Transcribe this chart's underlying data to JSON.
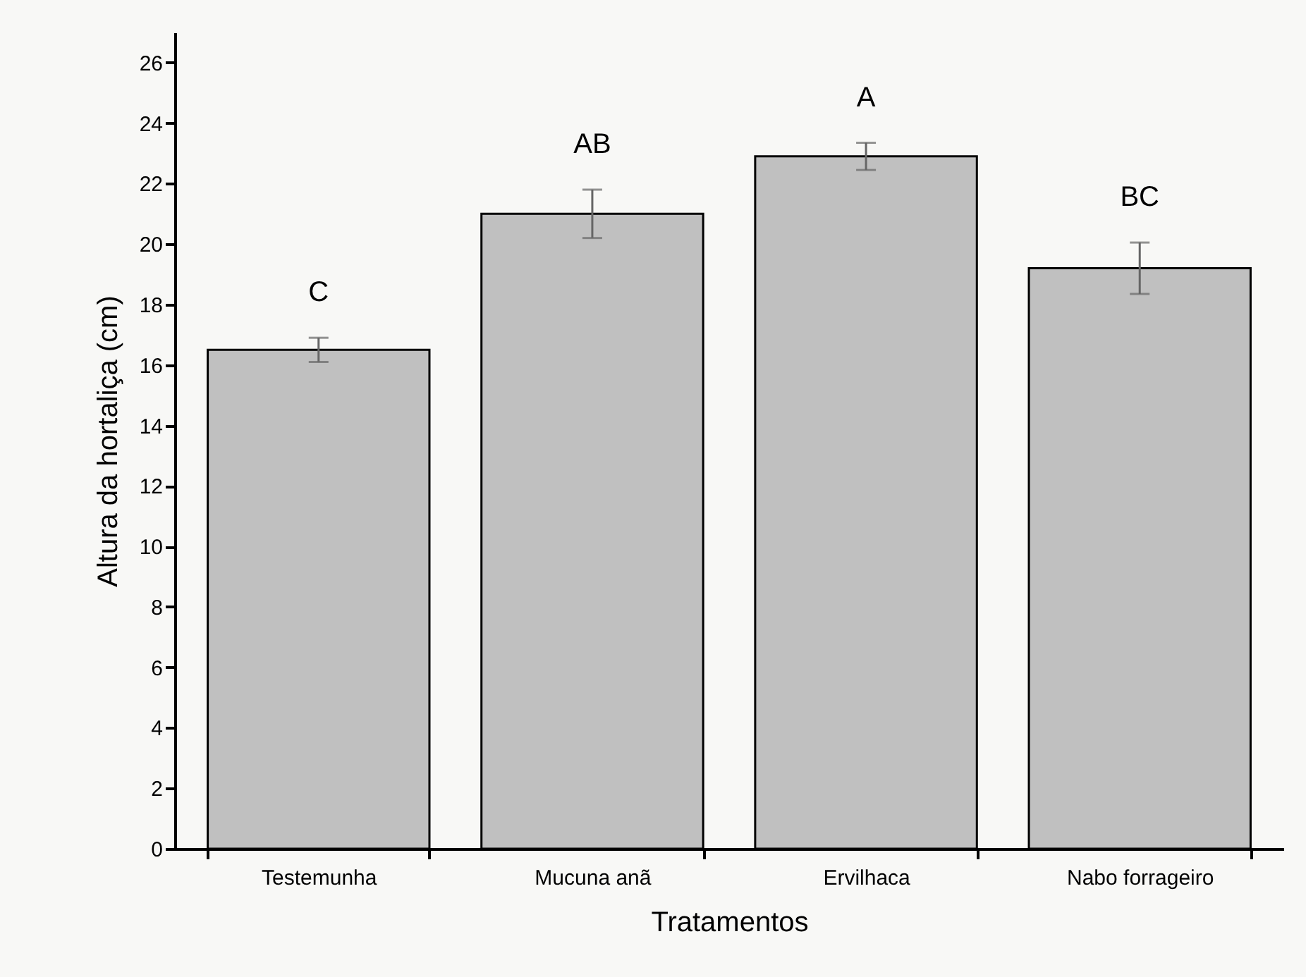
{
  "chart_data": {
    "type": "bar",
    "xlabel": "Tratamentos",
    "ylabel": "Altura da hortaliça (cm)",
    "categories": [
      "Testemunha",
      "Mucuna anã",
      "Ervilhaca",
      "Nabo forrageiro"
    ],
    "values": [
      16.5,
      21.0,
      22.9,
      19.2
    ],
    "errors": [
      0.4,
      0.8,
      0.45,
      0.85
    ],
    "color": "#c0c0c0",
    "ylim": [
      0,
      27
    ],
    "yticks": [
      0,
      2,
      4,
      6,
      8,
      10,
      12,
      14,
      16,
      18,
      20,
      22,
      24,
      26
    ],
    "grid": false,
    "annotations": [
      "C",
      "AB",
      "A",
      "BC"
    ]
  }
}
